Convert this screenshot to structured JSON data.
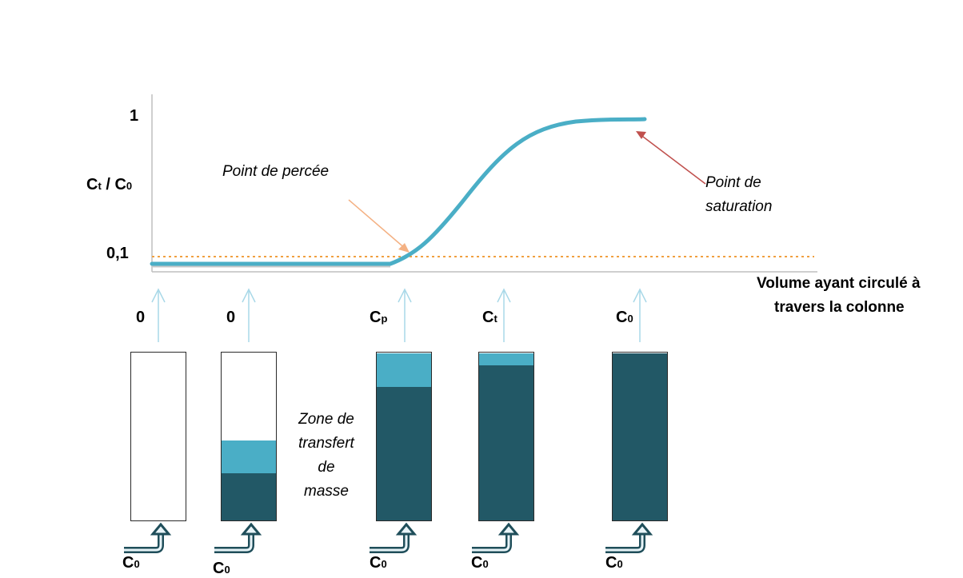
{
  "axis": {
    "y_label_main": "C",
    "y_label_sub1": "t",
    "y_label_sep": " / C",
    "y_label_sub2": "0",
    "tick_top": "1",
    "tick_low": "0,1",
    "x_label_line1": "Volume ayant circulé à",
    "x_label_line2": "travers la colonne"
  },
  "annotations": {
    "breakthrough": "Point de percée",
    "saturation_line1": "Point de",
    "saturation_line2": "saturation"
  },
  "zone_label": [
    "Zone de",
    "transfert",
    "de",
    "masse"
  ],
  "columns": [
    {
      "top_main": "0",
      "top_sub": "",
      "bottom_main": "C",
      "bottom_sub": "0",
      "light_fraction": 0,
      "dark_fraction": 0
    },
    {
      "top_main": "0",
      "top_sub": "",
      "bottom_main": "C",
      "bottom_sub": "0",
      "light_fraction": 0.2,
      "dark_fraction": 0.28
    },
    {
      "top_main": "C",
      "top_sub": "p",
      "bottom_main": "C",
      "bottom_sub": "0",
      "light_fraction": 0.2,
      "dark_fraction": 0.8
    },
    {
      "top_main": "C",
      "top_sub": "t",
      "bottom_main": "C",
      "bottom_sub": "0",
      "light_fraction": 0.07,
      "dark_fraction": 0.93
    },
    {
      "top_main": "C",
      "top_sub": "0",
      "bottom_main": "C",
      "bottom_sub": "0",
      "light_fraction": 0,
      "dark_fraction": 1
    }
  ],
  "colors": {
    "dark_teal": "#225866",
    "light_teal": "#4aaec6",
    "curve": "#4aaec6",
    "threshold_line": "#f0a040",
    "breakthrough_arrow": "#f4b183",
    "saturation_arrow": "#c0504d",
    "up_arrow": "#a8d8e8"
  }
}
